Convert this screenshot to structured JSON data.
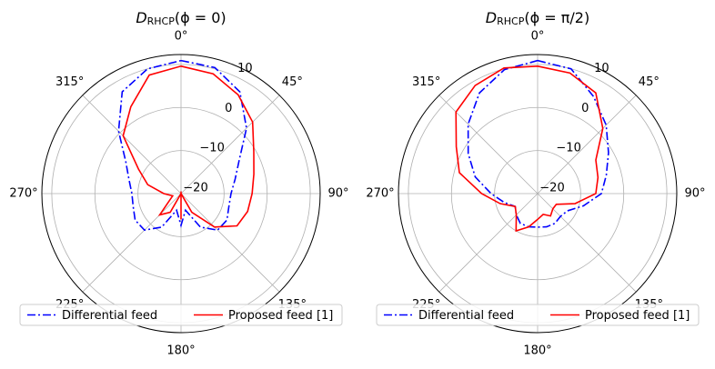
{
  "chart_data": [
    {
      "type": "polar",
      "title_parts": [
        "D",
        "RHCP",
        "(ϕ = 0)"
      ],
      "theta": [
        0,
        15,
        30,
        45,
        60,
        75,
        90,
        105,
        120,
        135,
        150,
        165,
        180,
        195,
        210,
        225,
        240,
        255,
        270,
        285,
        300,
        315,
        330,
        345
      ],
      "series": [
        {
          "name": "Differential feed",
          "color": "#0000ff",
          "linestyle": "dashdot",
          "values": [
            10.9,
            10.3,
            7.3,
            1.5,
            -4.4,
            -7,
            -8.4,
            -8.5,
            -7.7,
            -8,
            -11,
            -16,
            -12.6,
            -16,
            -11,
            -8,
            -7.7,
            -8.5,
            -8.6,
            -7.5,
            -5.2,
            0.5,
            7.3,
            10
          ]
        },
        {
          "name": "Proposed feed [1]",
          "color": "#ff0000",
          "linestyle": "solid",
          "values": [
            9.6,
            8.8,
            6.5,
            3.5,
            -0.5,
            -2.5,
            -3.5,
            -4,
            -5,
            -9,
            -15,
            -20,
            -14,
            -20,
            -15,
            -13,
            -17,
            -18,
            -16,
            -12,
            -8.6,
            -1,
            3.3,
            8.5
          ]
        }
      ],
      "ylim": [
        -20,
        12.3
      ],
      "yticks": [
        {
          "value": -20,
          "label": "−20"
        },
        {
          "value": -10,
          "label": "−10"
        },
        0,
        10
      ],
      "xticks": [
        {
          "value": 0,
          "label": "0°"
        },
        {
          "value": 45,
          "label": "45°"
        },
        {
          "value": 90,
          "label": "90°"
        },
        {
          "value": 135,
          "label": "135°"
        },
        {
          "value": 180,
          "label": "180°"
        },
        {
          "value": 225,
          "label": "225°"
        },
        {
          "value": 270,
          "label": "270°"
        },
        {
          "value": 315,
          "label": "315°"
        }
      ],
      "grid": true,
      "legend": "lower center"
    },
    {
      "type": "polar",
      "title_parts": [
        "D",
        "RHCP",
        "(ϕ = π/2)"
      ],
      "theta": [
        0,
        15,
        30,
        45,
        60,
        75,
        90,
        105,
        120,
        135,
        150,
        165,
        180,
        195,
        210,
        225,
        240,
        255,
        270,
        285,
        300,
        315,
        330,
        345
      ],
      "series": [
        {
          "name": "Differential feed",
          "color": "#0000ff",
          "linestyle": "dashdot",
          "values": [
            10.9,
            10,
            6,
            2.5,
            -1,
            -3.5,
            -5.2,
            -9,
            -12,
            -12.5,
            -12,
            -12,
            -12.2,
            -12,
            -12,
            -13,
            -14,
            -12,
            -9.2,
            -5,
            -1.4,
            2.8,
            7,
            9.8
          ]
        },
        {
          "name": "Proposed feed [1]",
          "color": "#ff0000",
          "linestyle": "solid",
          "values": [
            9.6,
            9,
            7,
            1.4,
            -4.4,
            -5.5,
            -6.5,
            -11,
            -15,
            -15,
            -14,
            -15,
            -14,
            -12,
            -10,
            -13,
            -14,
            -11,
            -7,
            -1.2,
            1.8,
            6.8,
            9,
            10.2
          ]
        }
      ],
      "ylim": [
        -20,
        12.3
      ],
      "yticks": [
        {
          "value": -20,
          "label": "−20"
        },
        {
          "value": -10,
          "label": "−10"
        },
        0,
        10
      ],
      "xticks": [
        {
          "value": 0,
          "label": "0°"
        },
        {
          "value": 45,
          "label": "45°"
        },
        {
          "value": 90,
          "label": "90°"
        },
        {
          "value": 135,
          "label": "135°"
        },
        {
          "value": 180,
          "label": "180°"
        },
        {
          "value": 225,
          "label": "225°"
        },
        {
          "value": 270,
          "label": "270°"
        },
        {
          "value": 315,
          "label": "315°"
        }
      ],
      "grid": true,
      "legend": "lower center"
    }
  ]
}
